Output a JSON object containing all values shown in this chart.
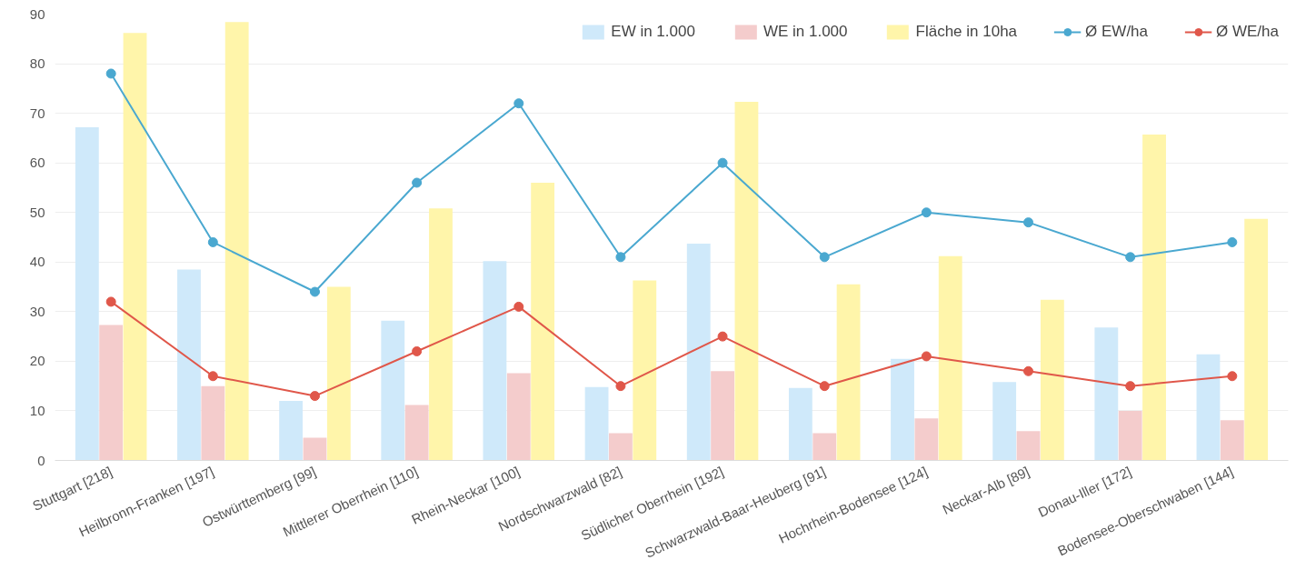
{
  "chart_data": {
    "type": "bar",
    "categories": [
      "Stuttgart [218]",
      "Heilbronn-Franken [197]",
      "Ostwürttemberg [99]",
      "Mittlerer Oberrhein [110]",
      "Rhein-Neckar [100]",
      "Nordschwarzwald [82]",
      "Südlicher Oberrhein [192]",
      "Schwarzwald-Baar-Heuberg [91]",
      "Hochrhein-Bodensee [124]",
      "Neckar-Alb [89]",
      "Donau-Iller [172]",
      "Bodensee-Oberschwaben [144]"
    ],
    "series": [
      {
        "name": "EW in 1.000",
        "color": "#cfe9fa",
        "values": [
          67.2,
          38.5,
          12,
          28.2,
          40.2,
          14.8,
          43.7,
          14.6,
          20.5,
          15.8,
          26.8,
          21.4
        ]
      },
      {
        "name": "WE in 1.000",
        "color": "#f4cccc",
        "values": [
          27.3,
          15,
          4.6,
          11.2,
          17.6,
          5.5,
          18,
          5.5,
          8.5,
          5.9,
          10,
          8.1
        ]
      },
      {
        "name": "Fläche in 10ha",
        "color": "#fff5aa",
        "values": [
          86.2,
          88.4,
          35,
          50.8,
          56,
          36.3,
          72.3,
          35.5,
          41.2,
          32.4,
          65.7,
          48.7
        ]
      },
      {
        "name": "Ø EW/ha",
        "type": "line",
        "color": "#4aa8d0",
        "values": [
          78,
          44,
          34,
          56,
          72,
          41,
          60,
          41,
          50,
          48,
          41,
          44
        ]
      },
      {
        "name": "Ø WE/ha",
        "type": "line",
        "color": "#e0574a",
        "values": [
          32,
          17,
          13,
          22,
          31,
          15,
          25,
          15,
          21,
          18,
          15,
          17
        ]
      }
    ],
    "ylim": [
      0,
      90
    ],
    "yticks": [
      0,
      10,
      20,
      30,
      40,
      50,
      60,
      70,
      80,
      90
    ],
    "grid": "y",
    "legend": "top right",
    "marker": "circle",
    "line_style": "solid"
  }
}
